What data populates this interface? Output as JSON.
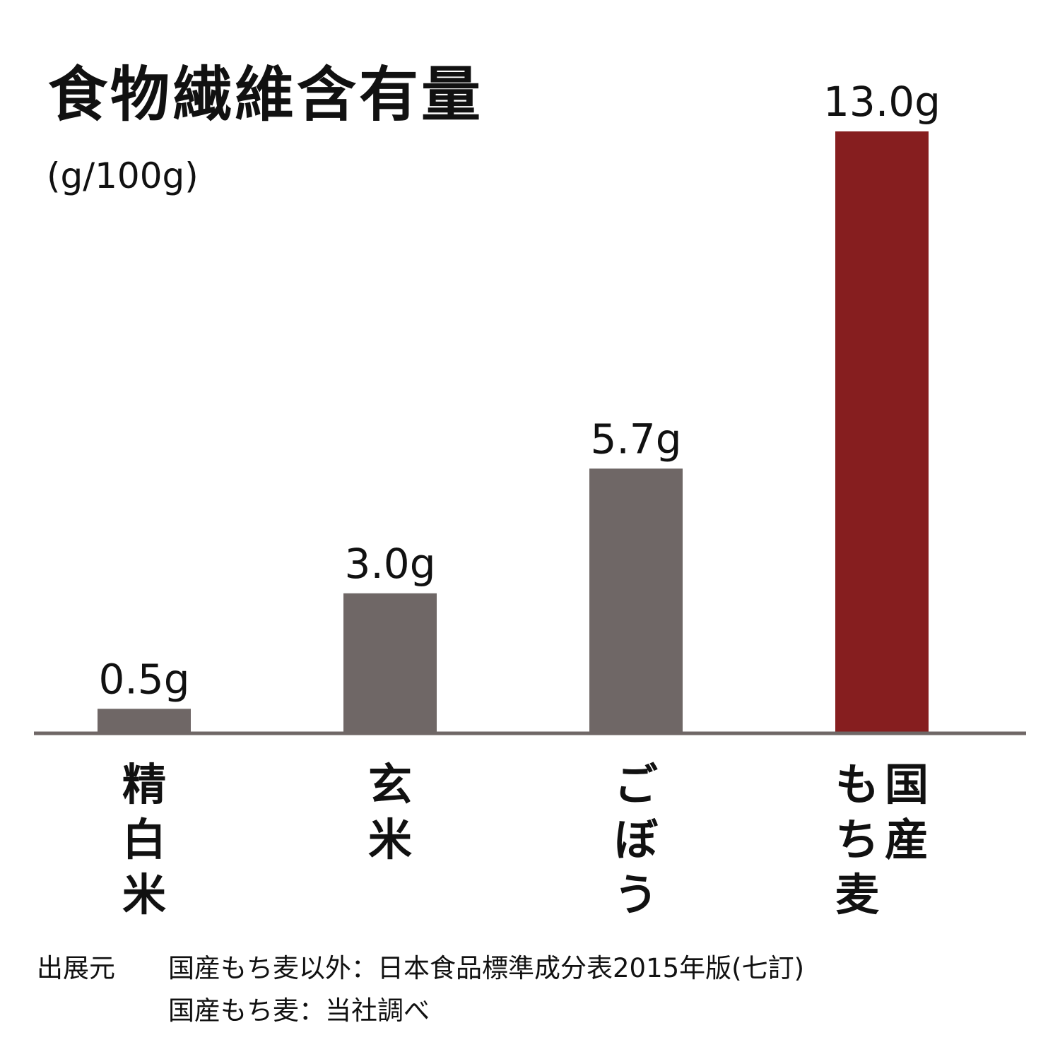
{
  "chart_data": {
    "type": "bar",
    "title": "食物繊維含有量",
    "subtitle": "(g/100g)",
    "categories": [
      "精白米",
      "玄米",
      "ごぼう",
      "国産もち麦"
    ],
    "values": [
      0.5,
      3.0,
      5.7,
      13.0
    ],
    "value_labels": [
      "0.5g",
      "3.0g",
      "5.7g",
      "13.0g"
    ],
    "category_label_lines": [
      [
        "精白米"
      ],
      [
        "玄米"
      ],
      [
        "ごぼう"
      ],
      [
        "もち麦",
        "国産"
      ]
    ],
    "bar_colors": [
      "#6f6766",
      "#6f6766",
      "#6f6766",
      "#861e1f"
    ],
    "axis_color": "#6f6766",
    "ylim": [
      0,
      13.0
    ],
    "grid": false
  },
  "source": {
    "heading": "出展元",
    "line1": "国産もち麦以外：日本食品標準成分表2015年版(七訂)",
    "line2": "国産もち麦：当社調べ"
  }
}
